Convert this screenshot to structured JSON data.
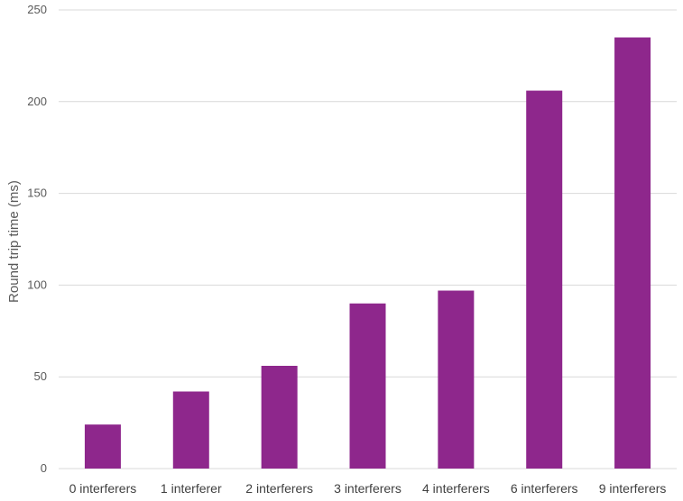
{
  "chart_data": {
    "type": "bar",
    "categories": [
      "0 interferers",
      "1 interferer",
      "2 interferers",
      "3 interferers",
      "4 interferers",
      "6 interferers",
      "9 interferers"
    ],
    "values": [
      24,
      42,
      56,
      90,
      97,
      206,
      235
    ],
    "title": "",
    "xlabel": "",
    "ylabel": "Round trip time (ms)",
    "ylim": [
      0,
      250
    ],
    "yticks": [
      0,
      50,
      100,
      150,
      200,
      250
    ],
    "grid": true,
    "legend": "none",
    "bar_color": "#8e278c",
    "grid_color": "#d9d9d9"
  }
}
